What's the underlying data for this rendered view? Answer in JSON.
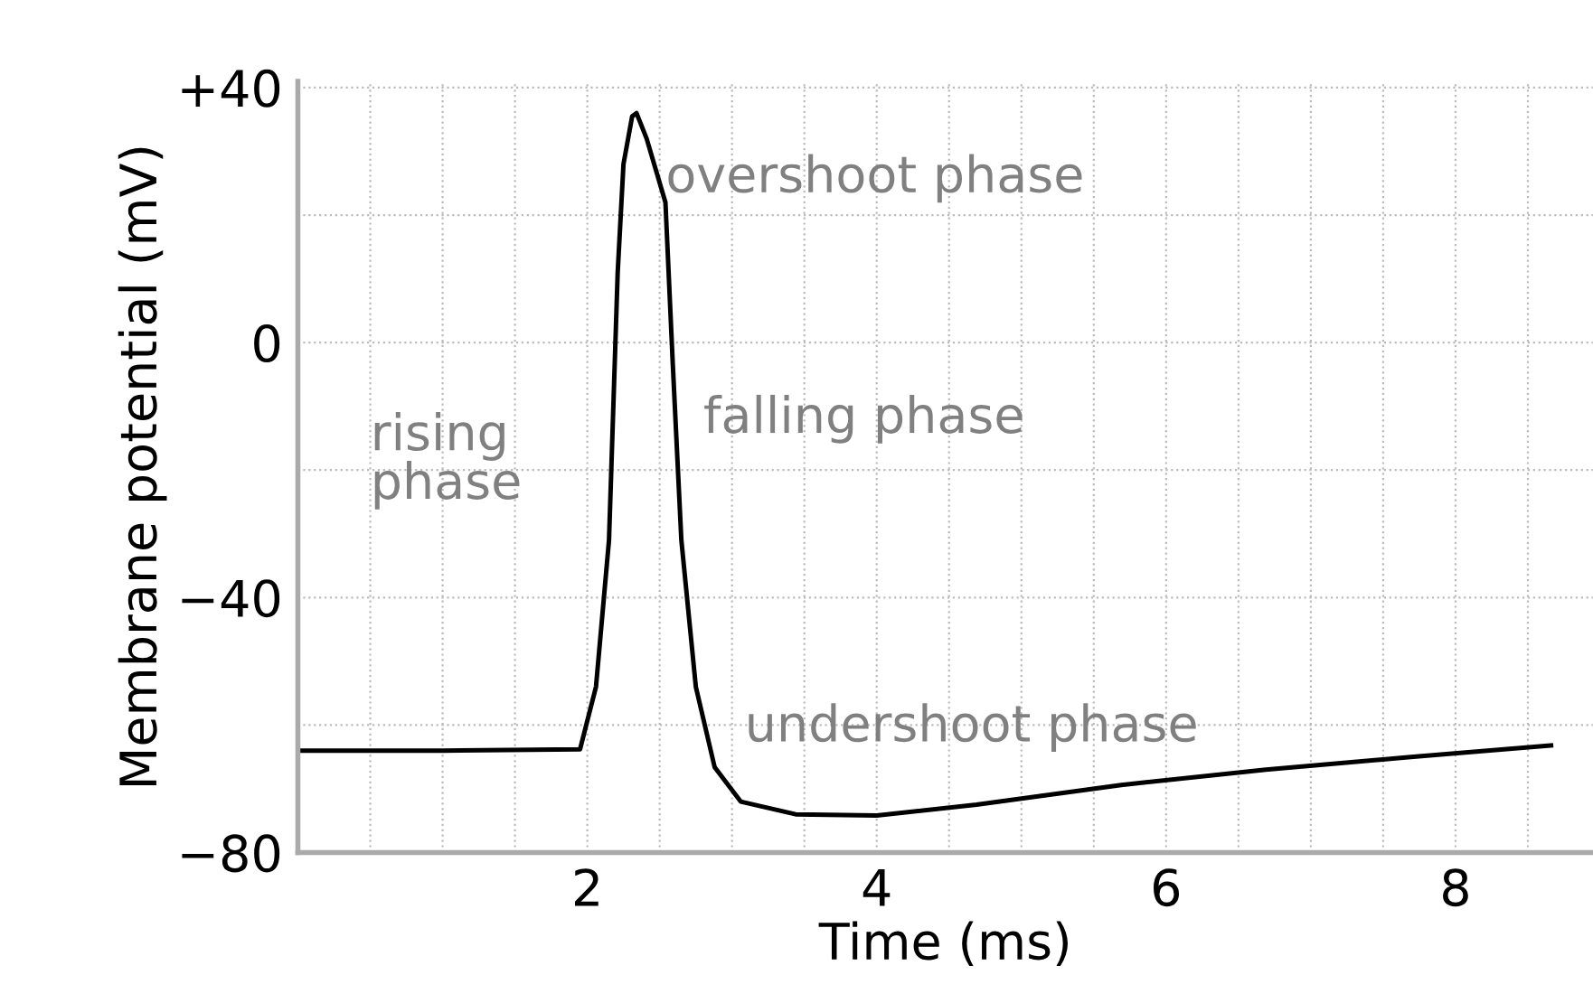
{
  "chart_data": {
    "type": "line",
    "xlabel": "Time (ms)",
    "ylabel": "Membrane potential (mV)",
    "x": [
      0,
      1.0,
      1.95,
      2.06,
      2.15,
      2.21,
      2.25,
      2.31,
      2.34,
      2.41,
      2.54,
      2.59,
      2.65,
      2.75,
      2.88,
      3.06,
      3.44,
      4.0,
      4.69,
      5.69,
      6.69,
      7.69,
      8.66
    ],
    "series": [
      {
        "color": "#000000",
        "values": [
          -64,
          -64,
          -63.8,
          -54,
          -31,
          11,
          28,
          35.5,
          36,
          32,
          22,
          -3,
          -31,
          -54,
          -66.6,
          -72,
          -74,
          -74.2,
          -72.5,
          -69.4,
          -67,
          -65,
          -63.2
        ]
      }
    ],
    "xlim": [
      0,
      8.95
    ],
    "ylim": [
      -80,
      41
    ],
    "xticks": [
      {
        "value": 0.5,
        "label": null
      },
      {
        "value": 1,
        "label": null
      },
      {
        "value": 1.5,
        "label": null
      },
      2,
      {
        "value": 2.5,
        "label": null
      },
      {
        "value": 3,
        "label": null
      },
      {
        "value": 3.5,
        "label": null
      },
      4,
      {
        "value": 4.5,
        "label": null
      },
      {
        "value": 5,
        "label": null
      },
      {
        "value": 5.5,
        "label": null
      },
      6,
      {
        "value": 6.5,
        "label": null
      },
      {
        "value": 7,
        "label": null
      },
      {
        "value": 7.5,
        "label": null
      },
      8,
      {
        "value": 8.5,
        "label": null
      }
    ],
    "yticks": [
      {
        "value": -80,
        "label": "−80"
      },
      {
        "value": -60,
        "label": null
      },
      {
        "value": -40,
        "label": "−40"
      },
      {
        "value": -20,
        "label": null
      },
      0,
      {
        "value": 20,
        "label": null
      },
      {
        "value": 40,
        "label": "+40"
      }
    ],
    "grid": true,
    "marker": "none",
    "line_style": "solid",
    "annotations": [
      "overshoot phase",
      "rising\nphase",
      "falling phase",
      "undershoot phase"
    ]
  }
}
